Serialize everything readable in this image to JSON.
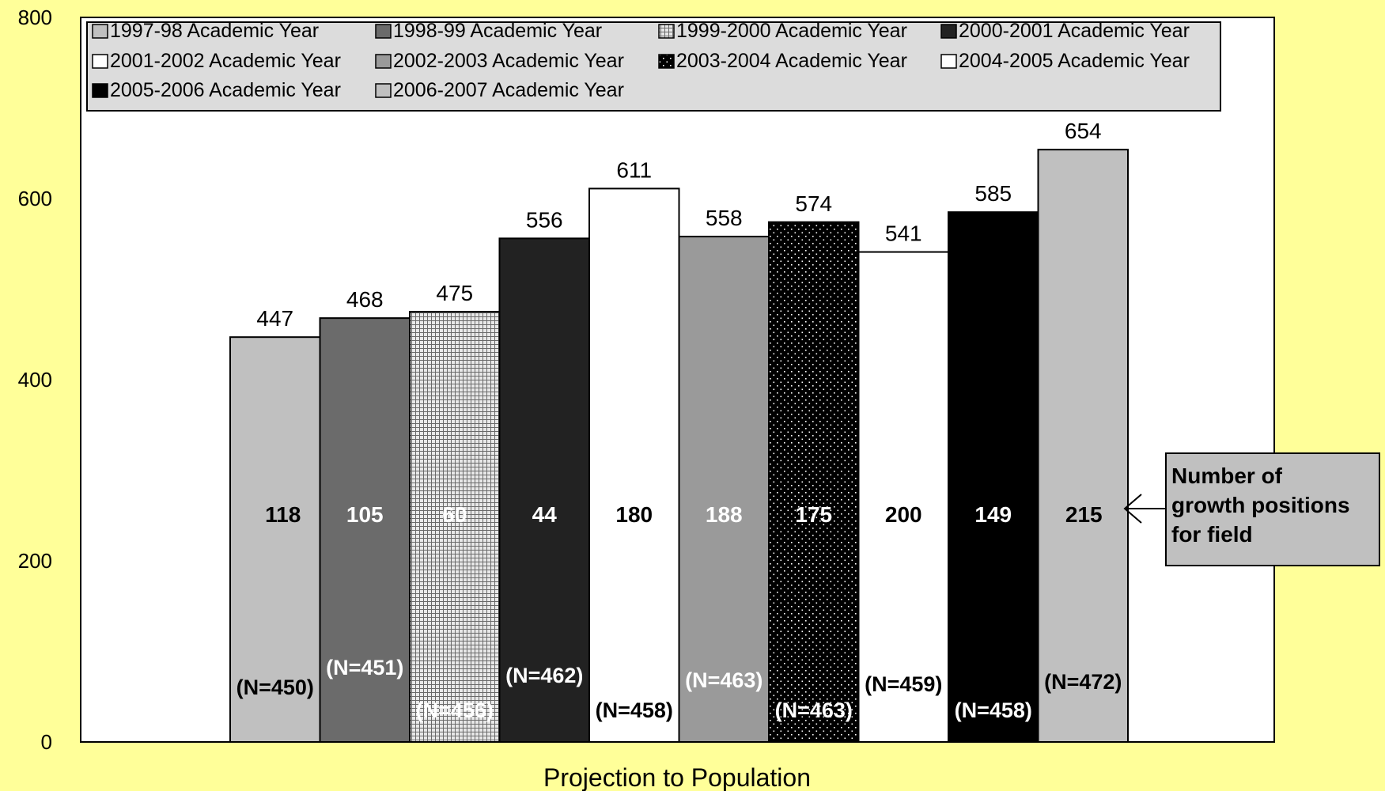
{
  "chart_data": {
    "type": "bar",
    "xlabel": "Projection to Population",
    "ylim": [
      0,
      800
    ],
    "yticks": [
      "0",
      "200",
      "400",
      "600",
      "800"
    ],
    "grid": false,
    "legend_position": "top",
    "series": [
      {
        "name": "1997-98 Academic Year",
        "value": 447,
        "label": "447",
        "inner": "118",
        "n": "(N=450)",
        "color": "#c0c0c0",
        "pattern": "solid",
        "inner_color": "#000000",
        "n_color": "#000000"
      },
      {
        "name": "1998-99 Academic Year",
        "value": 468,
        "label": "468",
        "inner": "105",
        "n": "(N=451)",
        "color": "#6b6b6b",
        "pattern": "solid",
        "inner_color": "#ffffff",
        "n_color": "#ffffff"
      },
      {
        "name": "1999-2000 Academic Year",
        "value": 475,
        "label": "475",
        "inner": "60",
        "n": "(N=456)",
        "color": "#b0b0b0",
        "pattern": "grid",
        "inner_color": "#ffffff",
        "n_color": "#ffffff"
      },
      {
        "name": "2000-2001 Academic Year",
        "value": 556,
        "label": "556",
        "inner": "44",
        "n": "(N=462)",
        "color": "#222222",
        "pattern": "solid",
        "inner_color": "#ffffff",
        "n_color": "#ffffff"
      },
      {
        "name": "2001-2002 Academic Year",
        "value": 611,
        "label": "611",
        "inner": "180",
        "n": "(N=458)",
        "color": "#ffffff",
        "pattern": "solid",
        "inner_color": "#000000",
        "n_color": "#000000"
      },
      {
        "name": "2002-2003 Academic Year",
        "value": 558,
        "label": "558",
        "inner": "188",
        "n": "(N=463)",
        "color": "#9a9a9a",
        "pattern": "solid",
        "inner_color": "#ffffff",
        "n_color": "#ffffff"
      },
      {
        "name": "2003-2004 Academic Year",
        "value": 574,
        "label": "574",
        "inner": "175",
        "n": "(N=463)",
        "color": "#000000",
        "pattern": "dots",
        "inner_color": "#ffffff",
        "n_color": "#ffffff"
      },
      {
        "name": "2004-2005 Academic Year",
        "value": 541,
        "label": "541",
        "inner": "200",
        "n": "(N=459)",
        "color": "#ffffff",
        "pattern": "solid",
        "inner_color": "#000000",
        "n_color": "#000000"
      },
      {
        "name": "2005-2006 Academic Year",
        "value": 585,
        "label": "585",
        "inner": "149",
        "n": "(N=458)",
        "color": "#000000",
        "pattern": "solid",
        "inner_color": "#ffffff",
        "n_color": "#ffffff"
      },
      {
        "name": "2006-2007 Academic Year",
        "value": 654,
        "label": "654",
        "inner": "215",
        "n": "(N=472)",
        "color": "#c0c0c0",
        "pattern": "solid",
        "inner_color": "#000000",
        "n_color": "#000000"
      }
    ],
    "annotation": {
      "lines": [
        "Number of",
        "growth positions",
        "for field"
      ],
      "box_color": "#c0c0c0"
    }
  }
}
